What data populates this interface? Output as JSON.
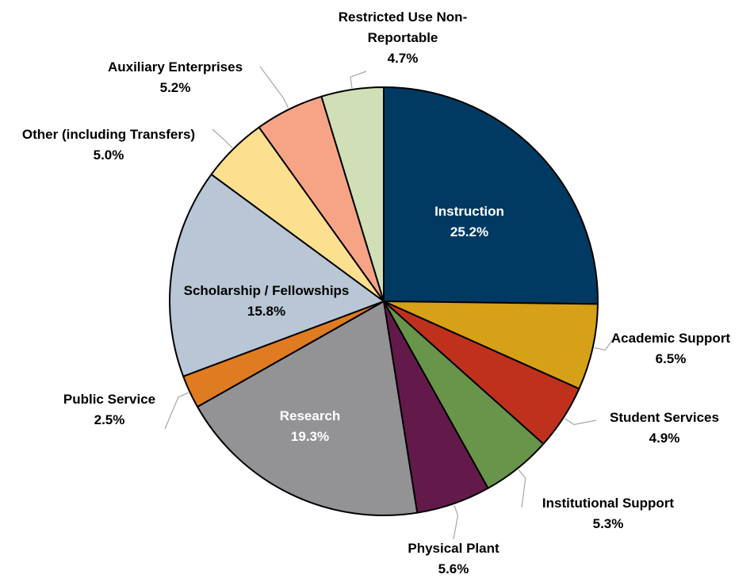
{
  "chart_data": {
    "type": "pie",
    "categories": [
      "Instruction",
      "Academic Support",
      "Student Services",
      "Institutional Support",
      "Physical Plant",
      "Research",
      "Public Service",
      "Scholarship / Fellowships",
      "Other (including Transfers)",
      "Auxiliary Enterprises",
      "Restricted Use Non-Reportable"
    ],
    "values": [
      25.2,
      6.5,
      4.9,
      5.3,
      5.6,
      19.3,
      2.5,
      15.8,
      5.0,
      5.2,
      4.7
    ],
    "value_labels": [
      "25.2%",
      "6.5%",
      "4.9%",
      "5.3%",
      "5.6%",
      "19.3%",
      "2.5%",
      "15.8%",
      "5.0%",
      "5.2%",
      "4.7%"
    ],
    "colors": [
      "#003a63",
      "#d6a017",
      "#c0311d",
      "#68954a",
      "#631a4a",
      "#939396",
      "#df7b20",
      "#b8c6d5",
      "#fde08f",
      "#f7a486",
      "#d0dfb6"
    ]
  }
}
